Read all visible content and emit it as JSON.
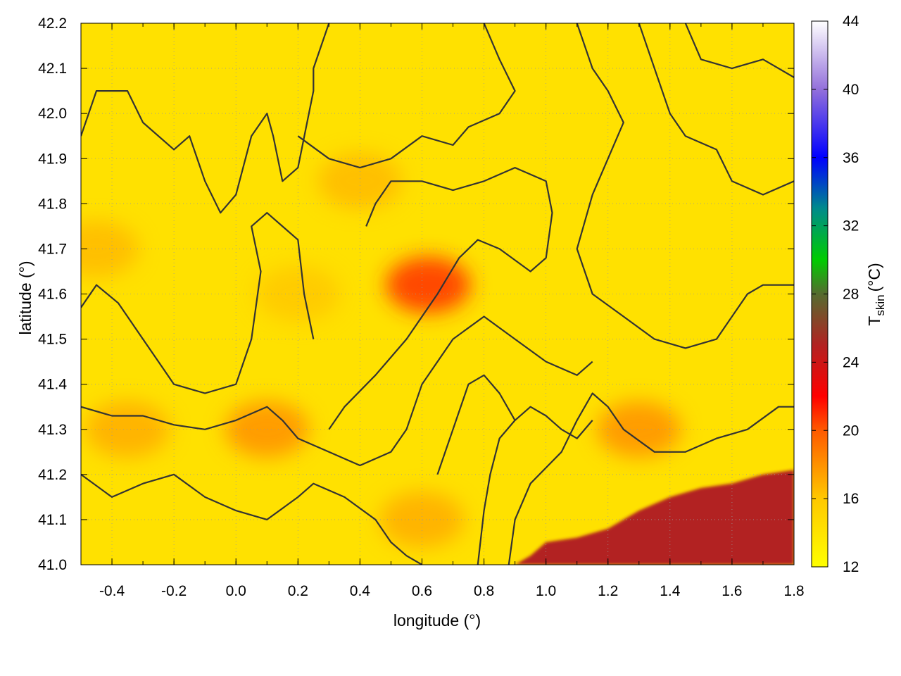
{
  "chart_data": {
    "type": "heatmap",
    "xlabel": "longitude (°)",
    "ylabel": "latitude (°)",
    "xlim": [
      -0.5,
      1.8
    ],
    "ylim": [
      41.0,
      42.2
    ],
    "xticks": [
      -0.4,
      -0.2,
      0.0,
      0.2,
      0.4,
      0.6,
      0.8,
      1.0,
      1.2,
      1.4,
      1.6,
      1.8
    ],
    "xtick_labels": [
      "-0.4",
      "-0.2",
      "0.0",
      "0.2",
      "0.4",
      "0.6",
      "0.8",
      "1.0",
      "1.2",
      "1.4",
      "1.6",
      "1.8"
    ],
    "yticks": [
      41.0,
      41.1,
      41.2,
      41.3,
      41.4,
      41.5,
      41.6,
      41.7,
      41.8,
      41.9,
      42.0,
      42.1,
      42.2
    ],
    "ytick_labels": [
      "41.0",
      "41.1",
      "41.2",
      "41.3",
      "41.4",
      "41.5",
      "41.6",
      "41.7",
      "41.8",
      "41.9",
      "42.0",
      "42.1",
      "42.2"
    ],
    "grid": true,
    "colorbar": {
      "label_main": "T",
      "label_sub": "skin",
      "label_unit": "(°C)",
      "range": [
        12,
        44
      ],
      "ticks": [
        12,
        16,
        20,
        24,
        28,
        32,
        36,
        40,
        44
      ],
      "tick_labels": [
        "12",
        "16",
        "20",
        "24",
        "28",
        "32",
        "36",
        "40",
        "44"
      ],
      "stops": [
        {
          "value": 12,
          "color": "#ffff00"
        },
        {
          "value": 16,
          "color": "#ffc800"
        },
        {
          "value": 20,
          "color": "#ff5a00"
        },
        {
          "value": 22,
          "color": "#ff0000"
        },
        {
          "value": 25,
          "color": "#b22222"
        },
        {
          "value": 28,
          "color": "#556b2f"
        },
        {
          "value": 30,
          "color": "#00cc00"
        },
        {
          "value": 33,
          "color": "#008b8b"
        },
        {
          "value": 36,
          "color": "#0000ff"
        },
        {
          "value": 40,
          "color": "#9370db"
        },
        {
          "value": 44,
          "color": "#ffffff"
        }
      ]
    },
    "features": {
      "sea": {
        "value": 25,
        "coast": [
          [
            0.9,
            41.0
          ],
          [
            0.95,
            41.02
          ],
          [
            1.0,
            41.05
          ],
          [
            1.1,
            41.06
          ],
          [
            1.2,
            41.08
          ],
          [
            1.3,
            41.12
          ],
          [
            1.4,
            41.15
          ],
          [
            1.5,
            41.17
          ],
          [
            1.6,
            41.18
          ],
          [
            1.7,
            41.2
          ],
          [
            1.8,
            41.21
          ],
          [
            1.8,
            41.0
          ]
        ]
      },
      "warm_areas": [
        {
          "center": [
            0.62,
            41.62
          ],
          "value": 21
        },
        {
          "center": [
            0.1,
            41.3
          ],
          "value": 18
        },
        {
          "center": [
            -0.35,
            41.3
          ],
          "value": 17
        },
        {
          "center": [
            0.6,
            41.1
          ],
          "value": 17
        },
        {
          "center": [
            0.4,
            41.85
          ],
          "value": 16.5
        },
        {
          "center": [
            -0.45,
            41.7
          ],
          "value": 16.5
        },
        {
          "center": [
            0.2,
            41.6
          ],
          "value": 16
        },
        {
          "center": [
            1.3,
            41.3
          ],
          "value": 18
        }
      ]
    },
    "contours": [
      [
        [
          -0.5,
          41.95
        ],
        [
          -0.45,
          42.05
        ],
        [
          -0.35,
          42.05
        ],
        [
          -0.3,
          41.98
        ],
        [
          -0.2,
          41.92
        ],
        [
          -0.15,
          41.95
        ],
        [
          -0.1,
          41.85
        ],
        [
          -0.05,
          41.78
        ],
        [
          0.0,
          41.82
        ],
        [
          0.05,
          41.95
        ],
        [
          0.1,
          42.0
        ],
        [
          0.12,
          41.95
        ],
        [
          0.15,
          41.85
        ],
        [
          0.2,
          41.88
        ],
        [
          0.25,
          42.05
        ],
        [
          0.25,
          42.1
        ],
        [
          0.3,
          42.2
        ]
      ],
      [
        [
          -0.5,
          41.57
        ],
        [
          -0.45,
          41.62
        ],
        [
          -0.38,
          41.58
        ],
        [
          -0.3,
          41.5
        ],
        [
          -0.25,
          41.45
        ],
        [
          -0.2,
          41.4
        ],
        [
          -0.1,
          41.38
        ],
        [
          0.0,
          41.4
        ],
        [
          0.05,
          41.5
        ],
        [
          0.08,
          41.65
        ],
        [
          0.05,
          41.75
        ],
        [
          0.1,
          41.78
        ],
        [
          0.2,
          41.72
        ],
        [
          0.22,
          41.6
        ],
        [
          0.25,
          41.5
        ]
      ],
      [
        [
          -0.5,
          41.35
        ],
        [
          -0.4,
          41.33
        ],
        [
          -0.3,
          41.33
        ],
        [
          -0.2,
          41.31
        ],
        [
          -0.1,
          41.3
        ],
        [
          0.0,
          41.32
        ],
        [
          0.1,
          41.35
        ],
        [
          0.15,
          41.32
        ],
        [
          0.2,
          41.28
        ],
        [
          0.3,
          41.25
        ],
        [
          0.4,
          41.22
        ],
        [
          0.5,
          41.25
        ],
        [
          0.55,
          41.3
        ],
        [
          0.6,
          41.4
        ],
        [
          0.7,
          41.5
        ],
        [
          0.8,
          41.55
        ],
        [
          0.9,
          41.5
        ],
        [
          1.0,
          41.45
        ],
        [
          1.1,
          41.42
        ],
        [
          1.15,
          41.45
        ]
      ],
      [
        [
          -0.5,
          41.2
        ],
        [
          -0.4,
          41.15
        ],
        [
          -0.3,
          41.18
        ],
        [
          -0.2,
          41.2
        ],
        [
          -0.1,
          41.15
        ],
        [
          0.0,
          41.12
        ],
        [
          0.1,
          41.1
        ],
        [
          0.2,
          41.15
        ],
        [
          0.25,
          41.18
        ],
        [
          0.35,
          41.15
        ],
        [
          0.45,
          41.1
        ],
        [
          0.5,
          41.05
        ],
        [
          0.55,
          41.02
        ],
        [
          0.6,
          41.0
        ]
      ],
      [
        [
          0.3,
          41.3
        ],
        [
          0.35,
          41.35
        ],
        [
          0.45,
          41.42
        ],
        [
          0.55,
          41.5
        ],
        [
          0.65,
          41.6
        ],
        [
          0.72,
          41.68
        ],
        [
          0.78,
          41.72
        ],
        [
          0.85,
          41.7
        ],
        [
          0.95,
          41.65
        ],
        [
          1.0,
          41.68
        ],
        [
          1.02,
          41.78
        ],
        [
          1.0,
          41.85
        ],
        [
          0.9,
          41.88
        ],
        [
          0.8,
          41.85
        ],
        [
          0.7,
          41.83
        ],
        [
          0.6,
          41.85
        ],
        [
          0.5,
          41.85
        ],
        [
          0.45,
          41.8
        ],
        [
          0.42,
          41.75
        ]
      ],
      [
        [
          0.2,
          41.95
        ],
        [
          0.3,
          41.9
        ],
        [
          0.4,
          41.88
        ],
        [
          0.5,
          41.9
        ],
        [
          0.6,
          41.95
        ],
        [
          0.7,
          41.93
        ],
        [
          0.75,
          41.97
        ],
        [
          0.85,
          42.0
        ],
        [
          0.9,
          42.05
        ],
        [
          0.85,
          42.12
        ],
        [
          0.8,
          42.2
        ]
      ],
      [
        [
          1.1,
          42.2
        ],
        [
          1.15,
          42.1
        ],
        [
          1.2,
          42.05
        ],
        [
          1.25,
          41.98
        ],
        [
          1.2,
          41.9
        ],
        [
          1.15,
          41.82
        ],
        [
          1.1,
          41.7
        ],
        [
          1.15,
          41.6
        ],
        [
          1.25,
          41.55
        ],
        [
          1.35,
          41.5
        ],
        [
          1.45,
          41.48
        ],
        [
          1.55,
          41.5
        ],
        [
          1.6,
          41.55
        ],
        [
          1.65,
          41.6
        ],
        [
          1.7,
          41.62
        ],
        [
          1.8,
          41.62
        ]
      ],
      [
        [
          1.3,
          42.2
        ],
        [
          1.35,
          42.1
        ],
        [
          1.4,
          42.0
        ],
        [
          1.45,
          41.95
        ],
        [
          1.55,
          41.92
        ],
        [
          1.6,
          41.85
        ],
        [
          1.7,
          41.82
        ],
        [
          1.8,
          41.85
        ]
      ],
      [
        [
          1.45,
          42.2
        ],
        [
          1.5,
          42.12
        ],
        [
          1.6,
          42.1
        ],
        [
          1.7,
          42.12
        ],
        [
          1.8,
          42.08
        ]
      ],
      [
        [
          0.88,
          41.0
        ],
        [
          0.9,
          41.1
        ],
        [
          0.95,
          41.18
        ],
        [
          1.05,
          41.25
        ],
        [
          1.1,
          41.32
        ],
        [
          1.15,
          41.38
        ],
        [
          1.2,
          41.35
        ],
        [
          1.25,
          41.3
        ],
        [
          1.35,
          41.25
        ],
        [
          1.45,
          41.25
        ],
        [
          1.55,
          41.28
        ],
        [
          1.65,
          41.3
        ],
        [
          1.75,
          41.35
        ],
        [
          1.8,
          41.35
        ]
      ],
      [
        [
          0.78,
          41.0
        ],
        [
          0.8,
          41.12
        ],
        [
          0.82,
          41.2
        ],
        [
          0.85,
          41.28
        ],
        [
          0.9,
          41.32
        ],
        [
          0.95,
          41.35
        ],
        [
          1.0,
          41.33
        ],
        [
          1.05,
          41.3
        ],
        [
          1.1,
          41.28
        ],
        [
          1.15,
          41.32
        ]
      ],
      [
        [
          0.65,
          41.2
        ],
        [
          0.7,
          41.3
        ],
        [
          0.75,
          41.4
        ],
        [
          0.8,
          41.42
        ],
        [
          0.85,
          41.38
        ],
        [
          0.9,
          41.32
        ]
      ]
    ]
  }
}
